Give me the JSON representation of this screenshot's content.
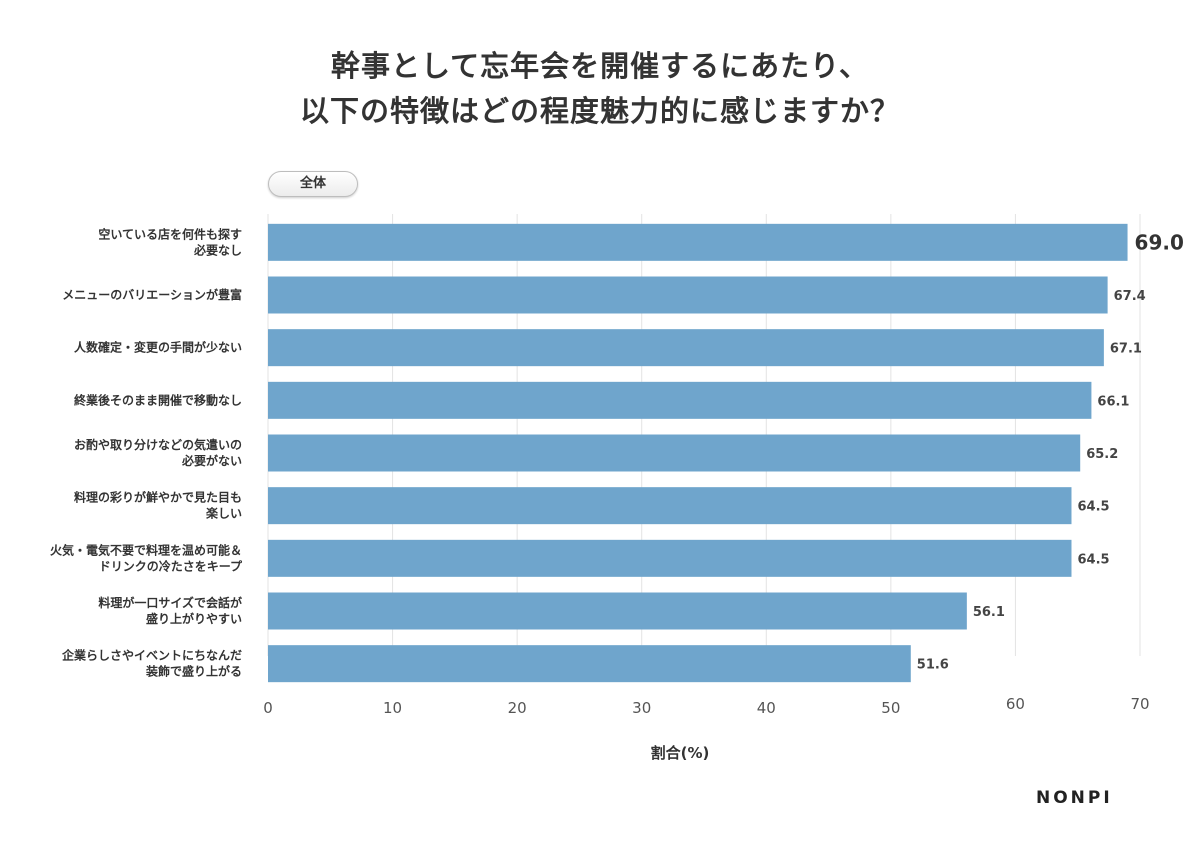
{
  "title_lines": [
    "幹事として忘年会を開催するにあたり、",
    "以下の特徴はどの程度魅力的に感じますか？"
  ],
  "filter_label": "全体",
  "brand": "NONPI",
  "chart_data": {
    "type": "bar",
    "orientation": "horizontal",
    "title": "幹事として忘年会を開催するにあたり、以下の特徴はどの程度魅力的に感じますか？",
    "xlabel": "割合(%)",
    "ylabel": "",
    "xlim": [
      0,
      70
    ],
    "xticks": [
      0,
      10,
      20,
      30,
      40,
      50,
      60,
      70
    ],
    "grid": true,
    "bar_color": "#6fa5cc",
    "categories": [
      [
        "空いている店を何件も探す",
        "必要なし"
      ],
      [
        "メニューのバリエーションが豊富"
      ],
      [
        "人数確定・変更の手間が少ない"
      ],
      [
        "終業後そのまま開催で移動なし"
      ],
      [
        "お酌や取り分けなどの気遣いの",
        "必要がない"
      ],
      [
        "料理の彩りが鮮やかで見た目も",
        "楽しい"
      ],
      [
        "火気・電気不要で料理を温め可能＆",
        "ドリンクの冷たさをキープ"
      ],
      [
        "料理が一口サイズで会話が",
        "盛り上がりやすい"
      ],
      [
        "企業らしさやイベントにちなんだ",
        "装飾で盛り上がる"
      ]
    ],
    "values": [
      69.0,
      67.4,
      67.1,
      66.1,
      65.2,
      64.5,
      64.5,
      56.1,
      51.6
    ],
    "value_labels": [
      "69.0",
      "67.4",
      "67.1",
      "66.1",
      "65.2",
      "64.5",
      "64.5",
      "56.1",
      "51.6"
    ]
  }
}
